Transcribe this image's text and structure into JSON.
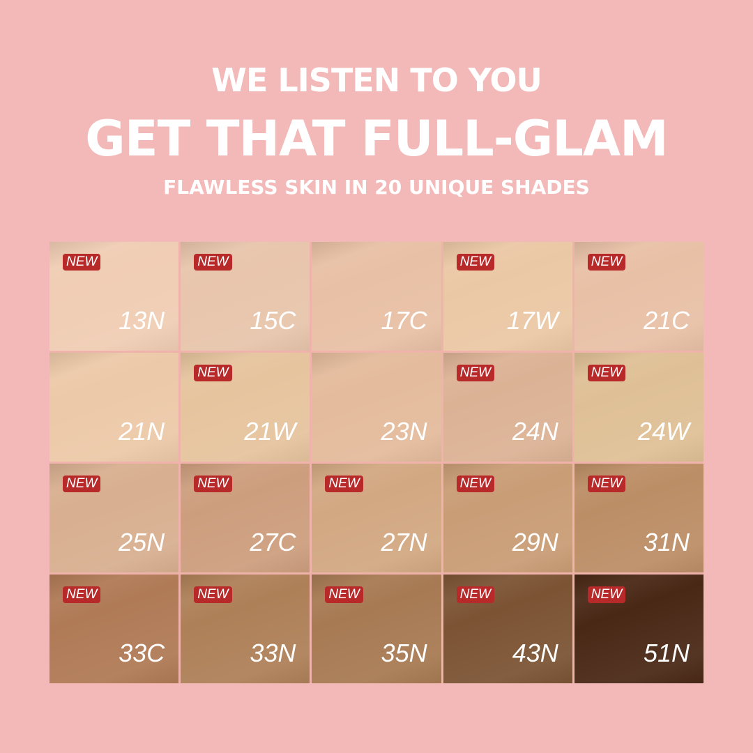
{
  "header": {
    "line1": "WE LISTEN TO YOU",
    "line2": "GET THAT FULL-GLAM",
    "line3": "FLAWLESS SKIN IN 20 UNIQUE SHADES"
  },
  "badge_label": "NEW",
  "colors": {
    "background": "#f3b8b8",
    "badge": "#b82a2a",
    "text": "#ffffff"
  },
  "swatches": [
    {
      "name": "13N",
      "color": "#f0cdb4",
      "new": true
    },
    {
      "name": "15C",
      "color": "#e8c5ac",
      "new": true
    },
    {
      "name": "17C",
      "color": "#e8c0a5",
      "new": false
    },
    {
      "name": "17W",
      "color": "#ebc8a5",
      "new": true
    },
    {
      "name": "21C",
      "color": "#e8c0a6",
      "new": true
    },
    {
      "name": "21N",
      "color": "#ecc9a8",
      "new": false
    },
    {
      "name": "21W",
      "color": "#e6c49e",
      "new": true
    },
    {
      "name": "23N",
      "color": "#e4bb9c",
      "new": false
    },
    {
      "name": "24N",
      "color": "#dcb295",
      "new": true
    },
    {
      "name": "24W",
      "color": "#dfc096",
      "new": true
    },
    {
      "name": "25N",
      "color": "#d8af90",
      "new": true
    },
    {
      "name": "27C",
      "color": "#cd9e7e",
      "new": true
    },
    {
      "name": "27N",
      "color": "#d2a882",
      "new": true
    },
    {
      "name": "29N",
      "color": "#c99d76",
      "new": true
    },
    {
      "name": "31N",
      "color": "#bc8e66",
      "new": true
    },
    {
      "name": "33C",
      "color": "#b07a56",
      "new": true
    },
    {
      "name": "33N",
      "color": "#ae8058",
      "new": true
    },
    {
      "name": "35N",
      "color": "#a77a53",
      "new": true
    },
    {
      "name": "43N",
      "color": "#7c5434",
      "new": true
    },
    {
      "name": "51N",
      "color": "#4a2816",
      "new": true
    }
  ]
}
